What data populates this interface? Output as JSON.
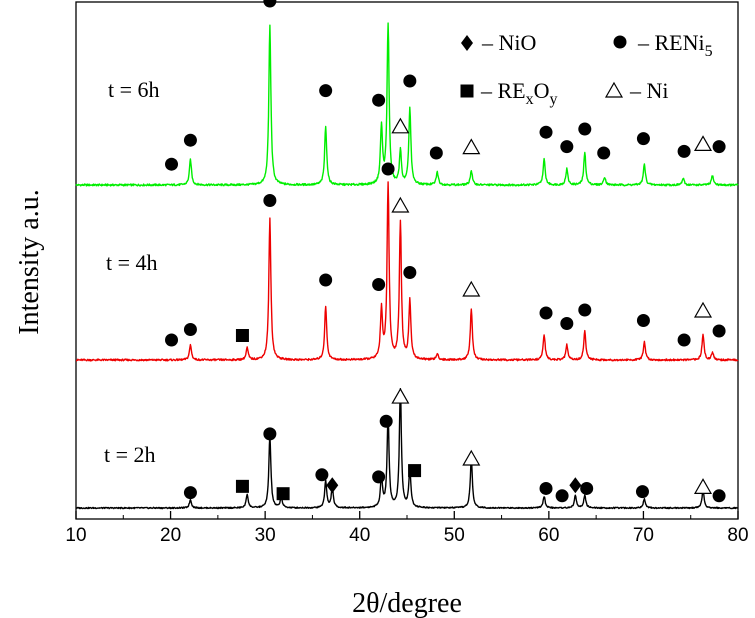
{
  "chart_data": {
    "type": "line",
    "title": "",
    "xlabel": "2θ/degree",
    "ylabel": "Intensity a.u.",
    "xlim": [
      10,
      80
    ],
    "xticks": [
      10,
      20,
      30,
      40,
      50,
      60,
      70,
      80
    ],
    "y_ticks_shown": false,
    "grid": false,
    "legend": {
      "placement": "top-right",
      "entries": [
        {
          "symbol": "diamond",
          "text": "– NiO"
        },
        {
          "symbol": "circle",
          "text": "– RENi",
          "sub": "5"
        },
        {
          "symbol": "square",
          "text": "– RE",
          "sub1": "x",
          "mid": "O",
          "sub2": "y"
        },
        {
          "symbol": "triangle",
          "text": "– Ni"
        }
      ]
    },
    "series": [
      {
        "name": "t = 6h",
        "color": "#00ee00",
        "peaks": [
          {
            "x": 22.1,
            "h": 0.16
          },
          {
            "x": 30.5,
            "h": 1.0
          },
          {
            "x": 36.4,
            "h": 0.37
          },
          {
            "x": 42.3,
            "h": 0.36
          },
          {
            "x": 43.0,
            "h": 1.0
          },
          {
            "x": 44.3,
            "h": 0.21
          },
          {
            "x": 45.3,
            "h": 0.48
          },
          {
            "x": 48.2,
            "h": 0.08
          },
          {
            "x": 51.8,
            "h": 0.09
          },
          {
            "x": 59.5,
            "h": 0.16
          },
          {
            "x": 61.9,
            "h": 0.1
          },
          {
            "x": 63.8,
            "h": 0.2
          },
          {
            "x": 65.9,
            "h": 0.05
          },
          {
            "x": 70.1,
            "h": 0.13
          },
          {
            "x": 74.2,
            "h": 0.04
          },
          {
            "x": 77.3,
            "h": 0.06
          }
        ],
        "markers": [
          {
            "symbol": "circle",
            "x": 20.1,
            "y": 0.08
          },
          {
            "symbol": "circle",
            "x": 22.1,
            "y": 0.23
          },
          {
            "symbol": "circle",
            "x": 30.5,
            "y": 1.1
          },
          {
            "symbol": "circle",
            "x": 36.4,
            "y": 0.54
          },
          {
            "symbol": "circle",
            "x": 42.0,
            "y": 0.48
          },
          {
            "symbol": "circle",
            "x": 43.0,
            "y": 1.32
          },
          {
            "symbol": "triangle",
            "x": 44.3,
            "y": 0.32
          },
          {
            "symbol": "circle",
            "x": 45.3,
            "y": 0.6
          },
          {
            "symbol": "circle",
            "x": 48.1,
            "y": 0.15
          },
          {
            "symbol": "triangle",
            "x": 51.8,
            "y": 0.19
          },
          {
            "symbol": "circle",
            "x": 59.7,
            "y": 0.28
          },
          {
            "symbol": "circle",
            "x": 61.9,
            "y": 0.19
          },
          {
            "symbol": "circle",
            "x": 63.8,
            "y": 0.3
          },
          {
            "symbol": "circle",
            "x": 65.8,
            "y": 0.15
          },
          {
            "symbol": "circle",
            "x": 70.0,
            "y": 0.24
          },
          {
            "symbol": "circle",
            "x": 74.3,
            "y": 0.16
          },
          {
            "symbol": "triangle",
            "x": 76.3,
            "y": 0.21
          },
          {
            "symbol": "circle",
            "x": 78.0,
            "y": 0.19
          }
        ]
      },
      {
        "name": "t = 4h",
        "color": "#ee0000",
        "peaks": [
          {
            "x": 22.1,
            "h": 0.1
          },
          {
            "x": 28.1,
            "h": 0.08
          },
          {
            "x": 30.5,
            "h": 0.94
          },
          {
            "x": 36.4,
            "h": 0.36
          },
          {
            "x": 42.3,
            "h": 0.33
          },
          {
            "x": 43.0,
            "h": 1.16
          },
          {
            "x": 44.3,
            "h": 0.91
          },
          {
            "x": 45.3,
            "h": 0.39
          },
          {
            "x": 48.2,
            "h": 0.04
          },
          {
            "x": 51.8,
            "h": 0.34
          },
          {
            "x": 59.5,
            "h": 0.17
          },
          {
            "x": 61.9,
            "h": 0.1
          },
          {
            "x": 63.8,
            "h": 0.19
          },
          {
            "x": 70.1,
            "h": 0.12
          },
          {
            "x": 76.3,
            "h": 0.17
          },
          {
            "x": 77.3,
            "h": 0.05
          }
        ],
        "markers": [
          {
            "symbol": "circle",
            "x": 20.1,
            "y": 0.08
          },
          {
            "symbol": "circle",
            "x": 22.1,
            "y": 0.15
          },
          {
            "symbol": "square",
            "x": 27.6,
            "y": 0.11
          },
          {
            "symbol": "circle",
            "x": 30.5,
            "y": 1.01
          },
          {
            "symbol": "circle",
            "x": 36.4,
            "y": 0.48
          },
          {
            "symbol": "circle",
            "x": 42.0,
            "y": 0.45
          },
          {
            "symbol": "circle",
            "x": 43.0,
            "y": 1.22
          },
          {
            "symbol": "triangle",
            "x": 44.3,
            "y": 0.98
          },
          {
            "symbol": "circle",
            "x": 45.3,
            "y": 0.53
          },
          {
            "symbol": "triangle",
            "x": 51.8,
            "y": 0.42
          },
          {
            "symbol": "circle",
            "x": 59.7,
            "y": 0.26
          },
          {
            "symbol": "circle",
            "x": 61.9,
            "y": 0.19
          },
          {
            "symbol": "circle",
            "x": 63.8,
            "y": 0.28
          },
          {
            "symbol": "circle",
            "x": 70.0,
            "y": 0.21
          },
          {
            "symbol": "circle",
            "x": 74.3,
            "y": 0.08
          },
          {
            "symbol": "triangle",
            "x": 76.3,
            "y": 0.28
          },
          {
            "symbol": "circle",
            "x": 78.0,
            "y": 0.14
          }
        ]
      },
      {
        "name": "t = 2h",
        "color": "#000000",
        "peaks": [
          {
            "x": 22.1,
            "h": 0.08
          },
          {
            "x": 28.1,
            "h": 0.13
          },
          {
            "x": 31.7,
            "h": 0.1
          },
          {
            "x": 30.5,
            "h": 0.69
          },
          {
            "x": 36.4,
            "h": 0.26
          },
          {
            "x": 37.1,
            "h": 0.19
          },
          {
            "x": 42.3,
            "h": 0.29
          },
          {
            "x": 43.0,
            "h": 0.85
          },
          {
            "x": 44.3,
            "h": 1.12
          },
          {
            "x": 45.3,
            "h": 0.36
          },
          {
            "x": 51.8,
            "h": 0.47
          },
          {
            "x": 59.5,
            "h": 0.11
          },
          {
            "x": 62.8,
            "h": 0.12
          },
          {
            "x": 63.8,
            "h": 0.12
          },
          {
            "x": 70.1,
            "h": 0.09
          },
          {
            "x": 76.3,
            "h": 0.17
          }
        ],
        "markers": [
          {
            "symbol": "circle",
            "x": 22.1,
            "y": 0.07
          },
          {
            "symbol": "square",
            "x": 27.6,
            "y": 0.13
          },
          {
            "symbol": "square",
            "x": 31.9,
            "y": 0.06
          },
          {
            "symbol": "circle",
            "x": 30.5,
            "y": 0.63
          },
          {
            "symbol": "circle",
            "x": 36.0,
            "y": 0.24
          },
          {
            "symbol": "diamond",
            "x": 37.1,
            "y": 0.14
          },
          {
            "symbol": "circle",
            "x": 42.0,
            "y": 0.22
          },
          {
            "symbol": "circle",
            "x": 42.8,
            "y": 0.75
          },
          {
            "symbol": "triangle",
            "x": 44.3,
            "y": 0.99
          },
          {
            "symbol": "square",
            "x": 45.8,
            "y": 0.28
          },
          {
            "symbol": "triangle",
            "x": 51.8,
            "y": 0.4
          },
          {
            "symbol": "circle",
            "x": 59.7,
            "y": 0.11
          },
          {
            "symbol": "circle",
            "x": 61.4,
            "y": 0.04
          },
          {
            "symbol": "diamond",
            "x": 62.8,
            "y": 0.14
          },
          {
            "symbol": "circle",
            "x": 64.0,
            "y": 0.11
          },
          {
            "symbol": "circle",
            "x": 69.9,
            "y": 0.08
          },
          {
            "symbol": "triangle",
            "x": 76.3,
            "y": 0.13
          },
          {
            "symbol": "circle",
            "x": 78.0,
            "y": 0.04
          }
        ]
      }
    ]
  }
}
